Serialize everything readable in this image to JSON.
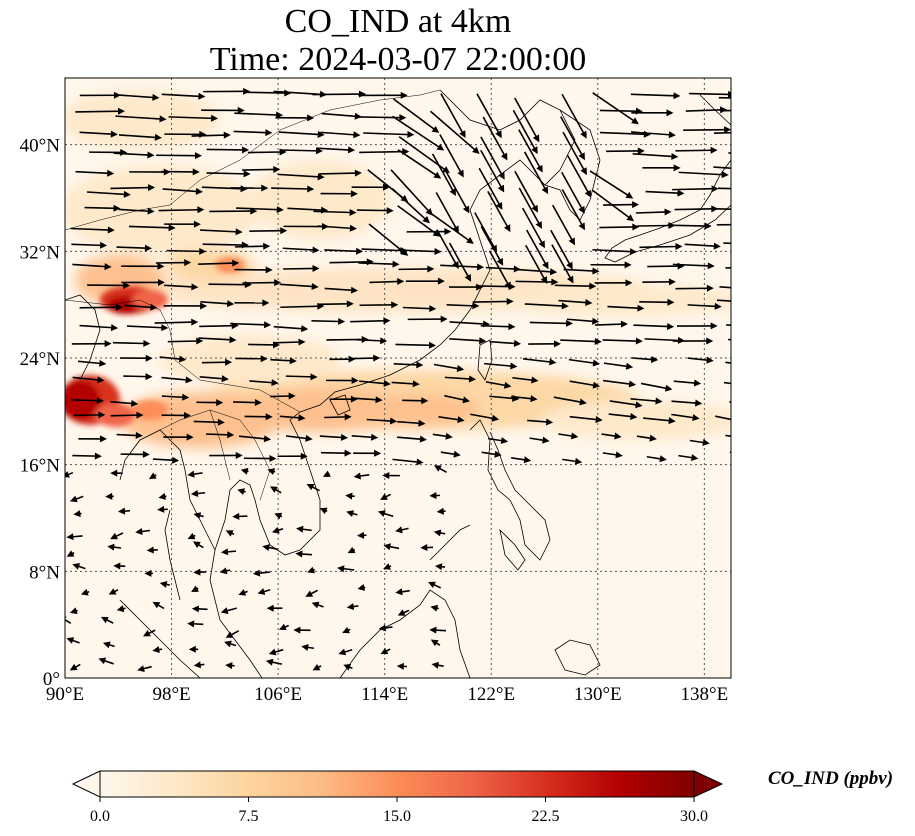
{
  "title": "CO_IND at 4km",
  "time_label": "Time: 2024-03-07 22:00:00",
  "lon_ticks": [
    "90°E",
    "98°E",
    "106°E",
    "114°E",
    "122°E",
    "130°E",
    "138°E"
  ],
  "lat_ticks": [
    "0°",
    "8°N",
    "16°N",
    "24°N",
    "32°N",
    "40°N"
  ],
  "colorbar": {
    "label": "CO_IND (ppbv)",
    "ticks": [
      "0.0",
      "7.5",
      "15.0",
      "22.5",
      "30.0"
    ],
    "range": [
      0,
      30
    ],
    "colormap": [
      "#fff7ec",
      "#fee8c8",
      "#fdd49e",
      "#fdbb84",
      "#fc8d59",
      "#ef6548",
      "#d7301f",
      "#b30000",
      "#7f0000"
    ],
    "extend": "both"
  },
  "map_extent": {
    "lon": [
      90,
      140
    ],
    "lat": [
      0,
      45
    ]
  },
  "gridlines": true,
  "arrow_color": "#000000"
}
